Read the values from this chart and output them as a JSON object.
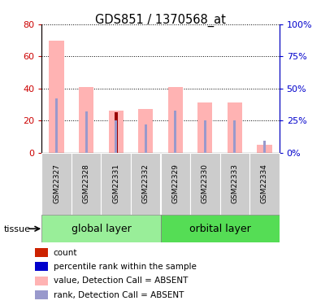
{
  "title": "GDS851 / 1370568_at",
  "samples": [
    "GSM22327",
    "GSM22328",
    "GSM22331",
    "GSM22332",
    "GSM22329",
    "GSM22330",
    "GSM22333",
    "GSM22334"
  ],
  "pink_values": [
    70,
    41,
    26,
    27,
    41,
    31,
    31,
    5
  ],
  "blue_rank_values": [
    42,
    32,
    25,
    22,
    33,
    25,
    25,
    9
  ],
  "dark_red_count": [
    0,
    0,
    25,
    0,
    0,
    0,
    0,
    0
  ],
  "left_ylim": [
    0,
    80
  ],
  "right_ylim": [
    0,
    100
  ],
  "left_yticks": [
    0,
    20,
    40,
    60,
    80
  ],
  "right_yticks": [
    0,
    25,
    50,
    75,
    100
  ],
  "right_yticklabels": [
    "0%",
    "25%",
    "50%",
    "75%",
    "100%"
  ],
  "left_color": "#cc0000",
  "right_color": "#0000cc",
  "pink_color": "#ffb3b3",
  "blue_color": "#9999cc",
  "dark_red_color": "#990000",
  "pink_bar_width": 0.5,
  "blue_bar_width": 0.08,
  "red_bar_width": 0.12,
  "global_label": "global layer",
  "orbital_label": "orbital layer",
  "tissue_label": "tissue",
  "legend_items": [
    {
      "color": "#cc2200",
      "label": "count"
    },
    {
      "color": "#0000cc",
      "label": "percentile rank within the sample"
    },
    {
      "color": "#ffb3b3",
      "label": "value, Detection Call = ABSENT"
    },
    {
      "color": "#9999cc",
      "label": "rank, Detection Call = ABSENT"
    }
  ],
  "global_green": "#99ee99",
  "orbital_green": "#55dd55",
  "xticklabel_bg": "#cccccc"
}
